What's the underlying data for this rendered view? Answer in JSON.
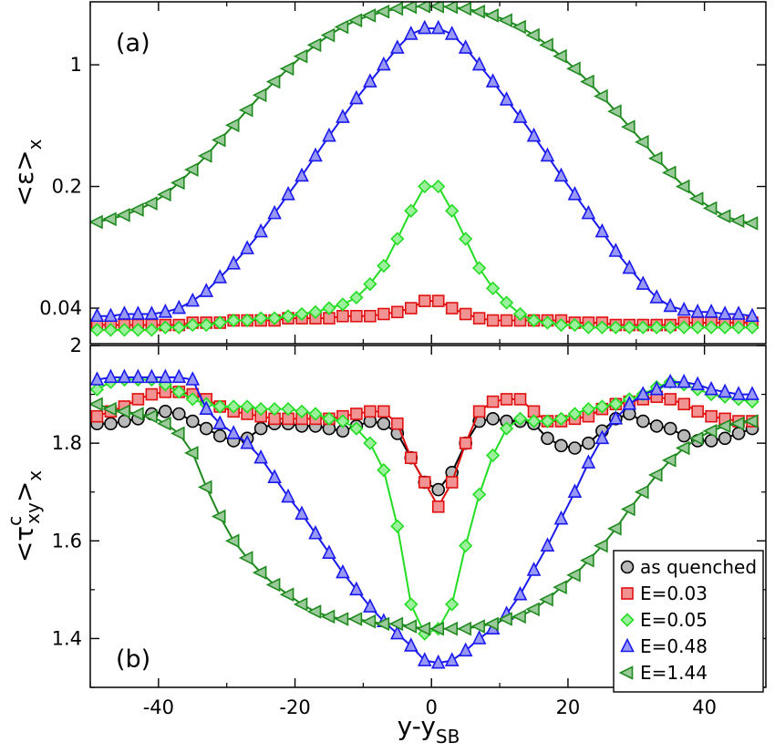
{
  "xlabel": "y-y",
  "xlabel_sub": "SB",
  "chart_data": [
    {
      "type": "line",
      "panel_label": "(a)",
      "ylabel": "<ε>",
      "ylabel_sub": "x",
      "yscale": "log",
      "xlim": [
        -50,
        49
      ],
      "ylim": [
        0.025,
        2.3
      ],
      "xticks": [
        -40,
        -20,
        0,
        20,
        40
      ],
      "xtick_labels": [
        "-40",
        "-20",
        "0",
        "20",
        "40"
      ],
      "yticks": [
        0.04,
        0.2,
        1
      ],
      "ytick_labels": [
        "0.04",
        "0.2",
        "1"
      ],
      "x": [
        -49,
        -47,
        -45,
        -43,
        -41,
        -39,
        -37,
        -35,
        -33,
        -31,
        -29,
        -27,
        -25,
        -23,
        -21,
        -19,
        -17,
        -15,
        -13,
        -11,
        -9,
        -7,
        -5,
        -3,
        -1,
        1,
        3,
        5,
        7,
        9,
        11,
        13,
        15,
        17,
        19,
        21,
        23,
        25,
        27,
        29,
        31,
        33,
        35,
        37,
        39,
        41,
        43,
        45,
        47
      ],
      "series": [
        {
          "name": "E=0.03",
          "color": "#e01010",
          "marker": "square",
          "values": [
            0.032,
            0.032,
            0.032,
            0.032,
            0.032,
            0.032,
            0.032,
            0.033,
            0.033,
            0.033,
            0.034,
            0.034,
            0.034,
            0.034,
            0.035,
            0.035,
            0.035,
            0.035,
            0.036,
            0.036,
            0.036,
            0.037,
            0.038,
            0.04,
            0.044,
            0.044,
            0.04,
            0.037,
            0.035,
            0.034,
            0.034,
            0.034,
            0.034,
            0.034,
            0.034,
            0.033,
            0.033,
            0.033,
            0.032,
            0.032,
            0.032,
            0.032,
            0.032,
            0.033,
            0.033,
            0.033,
            0.033,
            0.033,
            0.033
          ]
        },
        {
          "name": "E=0.05",
          "color": "#22dd22",
          "marker": "diamond",
          "values": [
            0.03,
            0.03,
            0.03,
            0.03,
            0.03,
            0.031,
            0.031,
            0.032,
            0.032,
            0.033,
            0.034,
            0.034,
            0.035,
            0.035,
            0.036,
            0.037,
            0.038,
            0.04,
            0.042,
            0.046,
            0.055,
            0.07,
            0.1,
            0.145,
            0.2,
            0.2,
            0.145,
            0.1,
            0.068,
            0.052,
            0.043,
            0.037,
            0.034,
            0.033,
            0.032,
            0.032,
            0.031,
            0.031,
            0.031,
            0.031,
            0.031,
            0.031,
            0.031,
            0.031,
            0.031,
            0.031,
            0.031,
            0.031,
            0.031
          ]
        },
        {
          "name": "E=0.48",
          "color": "#1a1aee",
          "marker": "triangle-up",
          "values": [
            0.036,
            0.036,
            0.037,
            0.037,
            0.037,
            0.038,
            0.04,
            0.044,
            0.05,
            0.06,
            0.072,
            0.088,
            0.11,
            0.14,
            0.18,
            0.23,
            0.3,
            0.39,
            0.5,
            0.64,
            0.8,
            1.0,
            1.25,
            1.5,
            1.62,
            1.62,
            1.5,
            1.25,
            1.0,
            0.8,
            0.63,
            0.5,
            0.39,
            0.3,
            0.23,
            0.18,
            0.14,
            0.11,
            0.085,
            0.068,
            0.055,
            0.046,
            0.041,
            0.039,
            0.038,
            0.038,
            0.037,
            0.037,
            0.036
          ]
        },
        {
          "name": "E=1.44",
          "color": "#1e8a1e",
          "marker": "triangle-left",
          "values": [
            0.125,
            0.13,
            0.137,
            0.147,
            0.16,
            0.18,
            0.21,
            0.25,
            0.3,
            0.37,
            0.45,
            0.55,
            0.67,
            0.8,
            0.95,
            1.12,
            1.3,
            1.48,
            1.65,
            1.8,
            1.92,
            2.02,
            2.1,
            2.15,
            2.17,
            2.17,
            2.15,
            2.1,
            2.02,
            1.92,
            1.8,
            1.65,
            1.48,
            1.3,
            1.12,
            0.95,
            0.8,
            0.66,
            0.54,
            0.44,
            0.36,
            0.29,
            0.24,
            0.2,
            0.17,
            0.15,
            0.135,
            0.127,
            0.123
          ]
        }
      ]
    },
    {
      "type": "line",
      "panel_label": "(b)",
      "ylabel": "<τ",
      "ylabel_sup": "c",
      "ylabel_sub": "xy",
      "ylabel_close": ">",
      "ylabel_sub2": "x",
      "yscale": "linear",
      "xlim": [
        -50,
        49
      ],
      "ylim": [
        1.3,
        2.0
      ],
      "xticks": [
        -40,
        -20,
        0,
        20,
        40
      ],
      "xtick_labels": [
        "-40",
        "-20",
        "0",
        "20",
        "40"
      ],
      "yticks": [
        1.4,
        1.6,
        1.8,
        2.0
      ],
      "ytick_labels": [
        "1.4",
        "1.6",
        "1.8",
        "2"
      ],
      "x": [
        -49,
        -47,
        -45,
        -43,
        -41,
        -39,
        -37,
        -35,
        -33,
        -31,
        -29,
        -27,
        -25,
        -23,
        -21,
        -19,
        -17,
        -15,
        -13,
        -11,
        -9,
        -7,
        -5,
        -3,
        -1,
        1,
        3,
        5,
        7,
        9,
        11,
        13,
        15,
        17,
        19,
        21,
        23,
        25,
        27,
        29,
        31,
        33,
        35,
        37,
        39,
        41,
        43,
        45,
        47
      ],
      "legend": {
        "location": "lower right"
      },
      "series": [
        {
          "name": "as quenched",
          "color": "#000000",
          "marker": "circle",
          "values": [
            1.84,
            1.84,
            1.845,
            1.85,
            1.86,
            1.865,
            1.86,
            1.845,
            1.83,
            1.815,
            1.805,
            1.81,
            1.83,
            1.84,
            1.84,
            1.835,
            1.835,
            1.83,
            1.825,
            1.835,
            1.845,
            1.84,
            1.82,
            1.77,
            1.72,
            1.705,
            1.74,
            1.8,
            1.845,
            1.85,
            1.845,
            1.845,
            1.84,
            1.81,
            1.795,
            1.79,
            1.8,
            1.825,
            1.85,
            1.86,
            1.845,
            1.835,
            1.83,
            1.815,
            1.805,
            1.805,
            1.81,
            1.82,
            1.83
          ]
        },
        {
          "name": "E=0.03",
          "color": "#e01010",
          "marker": "square",
          "values": [
            1.855,
            1.865,
            1.875,
            1.89,
            1.9,
            1.905,
            1.905,
            1.9,
            1.89,
            1.875,
            1.865,
            1.86,
            1.855,
            1.85,
            1.85,
            1.85,
            1.85,
            1.85,
            1.855,
            1.86,
            1.865,
            1.865,
            1.84,
            1.77,
            1.72,
            1.67,
            1.72,
            1.8,
            1.865,
            1.885,
            1.89,
            1.89,
            1.865,
            1.845,
            1.845,
            1.85,
            1.855,
            1.87,
            1.88,
            1.885,
            1.89,
            1.895,
            1.89,
            1.88,
            1.865,
            1.855,
            1.85,
            1.845,
            1.845
          ]
        },
        {
          "name": "E=0.05",
          "color": "#22dd22",
          "marker": "diamond",
          "values": [
            1.91,
            1.925,
            1.93,
            1.93,
            1.93,
            1.92,
            1.905,
            1.89,
            1.88,
            1.875,
            1.875,
            1.875,
            1.87,
            1.87,
            1.87,
            1.865,
            1.86,
            1.85,
            1.845,
            1.83,
            1.8,
            1.745,
            1.63,
            1.47,
            1.41,
            1.42,
            1.47,
            1.59,
            1.695,
            1.775,
            1.83,
            1.85,
            1.845,
            1.845,
            1.85,
            1.86,
            1.87,
            1.875,
            1.88,
            1.89,
            1.9,
            1.915,
            1.925,
            1.92,
            1.91,
            1.9,
            1.895,
            1.89,
            1.885
          ]
        },
        {
          "name": "E=0.48",
          "color": "#1a1aee",
          "marker": "triangle-up",
          "values": [
            1.93,
            1.935,
            1.935,
            1.935,
            1.935,
            1.935,
            1.935,
            1.93,
            1.87,
            1.84,
            1.82,
            1.8,
            1.77,
            1.73,
            1.69,
            1.655,
            1.615,
            1.575,
            1.535,
            1.5,
            1.465,
            1.435,
            1.41,
            1.385,
            1.355,
            1.35,
            1.355,
            1.375,
            1.4,
            1.42,
            1.45,
            1.49,
            1.54,
            1.59,
            1.645,
            1.7,
            1.76,
            1.81,
            1.85,
            1.88,
            1.9,
            1.91,
            1.925,
            1.925,
            1.92,
            1.91,
            1.905,
            1.9,
            1.9
          ]
        },
        {
          "name": "E=1.44",
          "color": "#1e8a1e",
          "marker": "triangle-left",
          "values": [
            1.88,
            1.87,
            1.865,
            1.86,
            1.855,
            1.84,
            1.82,
            1.78,
            1.71,
            1.65,
            1.6,
            1.565,
            1.535,
            1.51,
            1.49,
            1.47,
            1.455,
            1.445,
            1.44,
            1.44,
            1.435,
            1.43,
            1.43,
            1.425,
            1.42,
            1.42,
            1.42,
            1.42,
            1.425,
            1.43,
            1.44,
            1.445,
            1.46,
            1.48,
            1.505,
            1.53,
            1.56,
            1.59,
            1.625,
            1.665,
            1.7,
            1.735,
            1.765,
            1.79,
            1.81,
            1.825,
            1.835,
            1.84,
            1.845
          ]
        }
      ]
    }
  ]
}
